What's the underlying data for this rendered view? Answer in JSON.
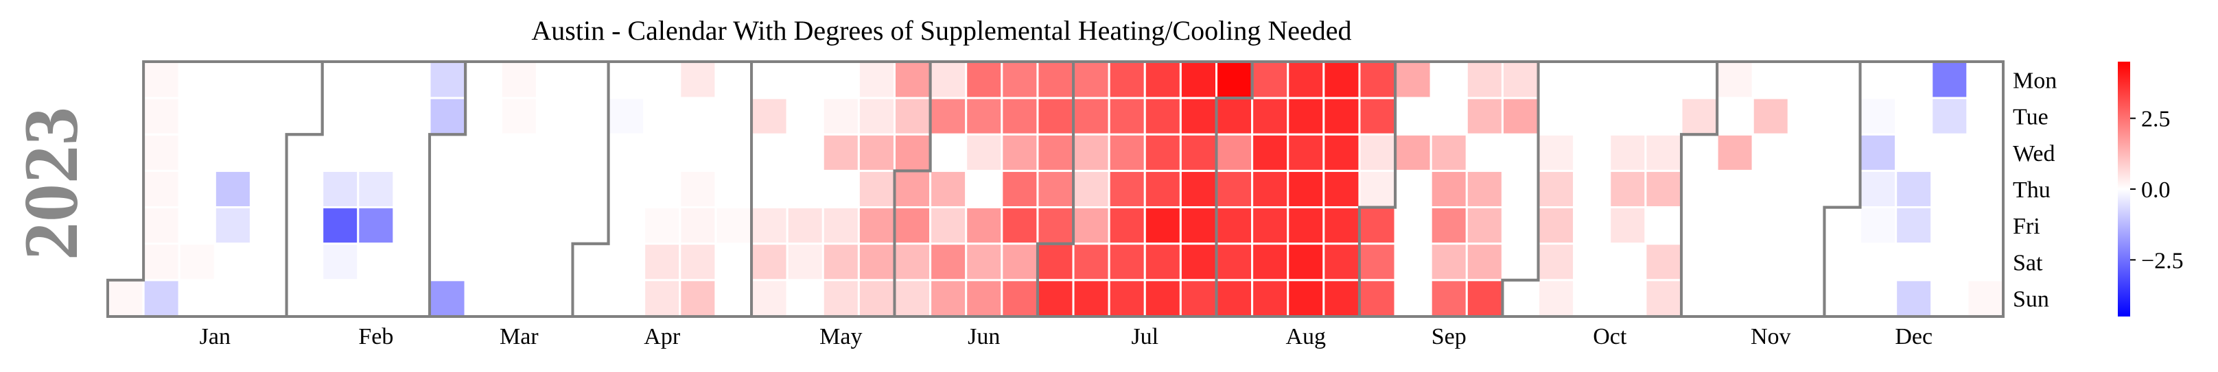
{
  "chart_data": {
    "type": "heatmap",
    "title": "Austin - Calendar With Degrees of Supplemental Heating/Cooling Needed",
    "year_label": "2023",
    "year": 2023,
    "weekdays": [
      "Mon",
      "Tue",
      "Wed",
      "Thu",
      "Fri",
      "Sat",
      "Sun"
    ],
    "months": [
      "Jan",
      "Feb",
      "Mar",
      "Apr",
      "May",
      "Jun",
      "Jul",
      "Aug",
      "Sep",
      "Oct",
      "Nov",
      "Dec"
    ],
    "colorbar": {
      "colormap": "bwr",
      "vmin": -4.5,
      "vmax": 4.5,
      "ticks": [
        2.5,
        0.0,
        -2.5
      ],
      "tick_labels": [
        "2.5",
        "0.0",
        "−2.5"
      ]
    },
    "color_anchors": {
      "cold": "#0000ff",
      "neutral": "#ffffff",
      "hot": "#ff0000"
    },
    "grid_line_color": "#808080",
    "title_color": "#000000",
    "year_color": "#888888",
    "weeks": [
      [
        null,
        null,
        null,
        null,
        null,
        null,
        0.15
      ],
      [
        0.15,
        0.15,
        0.15,
        0.15,
        0.15,
        0.15,
        -0.8
      ],
      [
        0,
        0,
        0,
        0,
        0,
        0.1,
        0
      ],
      [
        0,
        0,
        0,
        -1.0,
        -0.5,
        0,
        0
      ],
      [
        0,
        0,
        0,
        0,
        0,
        0,
        0
      ],
      [
        0,
        0,
        0,
        0,
        0,
        0,
        0
      ],
      [
        0,
        0,
        0,
        -0.5,
        -2.8,
        -0.2,
        0
      ],
      [
        0,
        0,
        0,
        -0.4,
        -2.1,
        0,
        0
      ],
      [
        0,
        0,
        0,
        0,
        0,
        0,
        0
      ],
      [
        -0.7,
        -1.0,
        0,
        0,
        0,
        0,
        -1.8
      ],
      [
        0,
        0,
        0,
        0,
        0,
        0,
        0
      ],
      [
        0.15,
        0.1,
        0,
        0,
        0,
        0,
        0
      ],
      [
        0,
        0,
        0,
        0,
        0,
        0,
        0
      ],
      [
        0,
        0,
        0,
        0,
        0,
        0,
        0
      ],
      [
        0,
        -0.1,
        0,
        0,
        0,
        0,
        0
      ],
      [
        0,
        0,
        0,
        0,
        0.1,
        0.5,
        0.5
      ],
      [
        0.4,
        0,
        0,
        0.15,
        0.2,
        0.5,
        1.0
      ],
      [
        0,
        0,
        0,
        0,
        0.1,
        0,
        0
      ],
      [
        0,
        0.6,
        0,
        0,
        0.4,
        0.8,
        0.3
      ],
      [
        0,
        0,
        0,
        0,
        0.5,
        0.3,
        0
      ],
      [
        0,
        0.2,
        1.1,
        0,
        0.5,
        1.0,
        0.6
      ],
      [
        0.3,
        0.4,
        1.3,
        0.8,
        1.6,
        1.4,
        0.8
      ],
      [
        1.7,
        1.0,
        1.7,
        1.6,
        2.0,
        1.2,
        0.7
      ],
      [
        0.5,
        2.1,
        0,
        1.3,
        0.8,
        2.0,
        1.6
      ],
      [
        2.5,
        2.2,
        0.5,
        0,
        1.8,
        1.4,
        1.9
      ],
      [
        2.3,
        2.4,
        1.6,
        2.5,
        3.0,
        1.6,
        2.6
      ],
      [
        2.5,
        2.8,
        2.2,
        2.2,
        2.8,
        3.2,
        3.6
      ],
      [
        2.4,
        2.6,
        1.3,
        0.8,
        1.6,
        2.9,
        3.6
      ],
      [
        3.0,
        2.8,
        2.3,
        2.9,
        3.2,
        3.1,
        3.4
      ],
      [
        3.4,
        3.2,
        3.1,
        3.2,
        3.9,
        3.3,
        3.6
      ],
      [
        3.9,
        3.7,
        3.2,
        3.7,
        3.8,
        3.7,
        3.3
      ],
      [
        4.4,
        3.6,
        2.1,
        3.1,
        3.5,
        3.4,
        3.5
      ],
      [
        3.0,
        3.5,
        3.7,
        3.5,
        3.5,
        3.6,
        3.5
      ],
      [
        3.6,
        3.8,
        3.5,
        3.8,
        3.7,
        3.9,
        3.9
      ],
      [
        3.9,
        3.8,
        3.7,
        3.7,
        3.6,
        3.5,
        3.7
      ],
      [
        3.1,
        3.1,
        0.5,
        0.3,
        3.0,
        2.6,
        2.9
      ],
      [
        1.5,
        0,
        1.5,
        0,
        0,
        0,
        0
      ],
      [
        0,
        0,
        1.2,
        1.6,
        2.1,
        1.2,
        2.6
      ],
      [
        0.7,
        1.2,
        0,
        1.3,
        1.2,
        1.3,
        3.1
      ],
      [
        0.6,
        1.5,
        0,
        0,
        0,
        0,
        0
      ],
      [
        0,
        0,
        0.3,
        0.8,
        0.9,
        0.6,
        0.3
      ],
      [
        0,
        0,
        0,
        0,
        0,
        0,
        0
      ],
      [
        0,
        0,
        0.4,
        1.0,
        0.5,
        0,
        0
      ],
      [
        0,
        0,
        0.4,
        1.1,
        0,
        0.8,
        0.6
      ],
      [
        0,
        0.6,
        0,
        0,
        0,
        0,
        0
      ],
      [
        0.2,
        0,
        1.3,
        0,
        0,
        0,
        0
      ],
      [
        0,
        1.0,
        0,
        0,
        0,
        0,
        0
      ],
      [
        0,
        0,
        0,
        0,
        0,
        0,
        0
      ],
      [
        0,
        0,
        0,
        0,
        0,
        0,
        0
      ],
      [
        0,
        -0.1,
        -0.9,
        -0.3,
        -0.1,
        0,
        0
      ],
      [
        0,
        0,
        0,
        -0.7,
        -0.6,
        0,
        -0.8
      ],
      [
        -2.3,
        -0.6,
        0,
        0,
        0,
        0,
        0
      ],
      [
        0,
        0,
        0,
        0,
        0,
        0,
        0.15
      ]
    ]
  }
}
